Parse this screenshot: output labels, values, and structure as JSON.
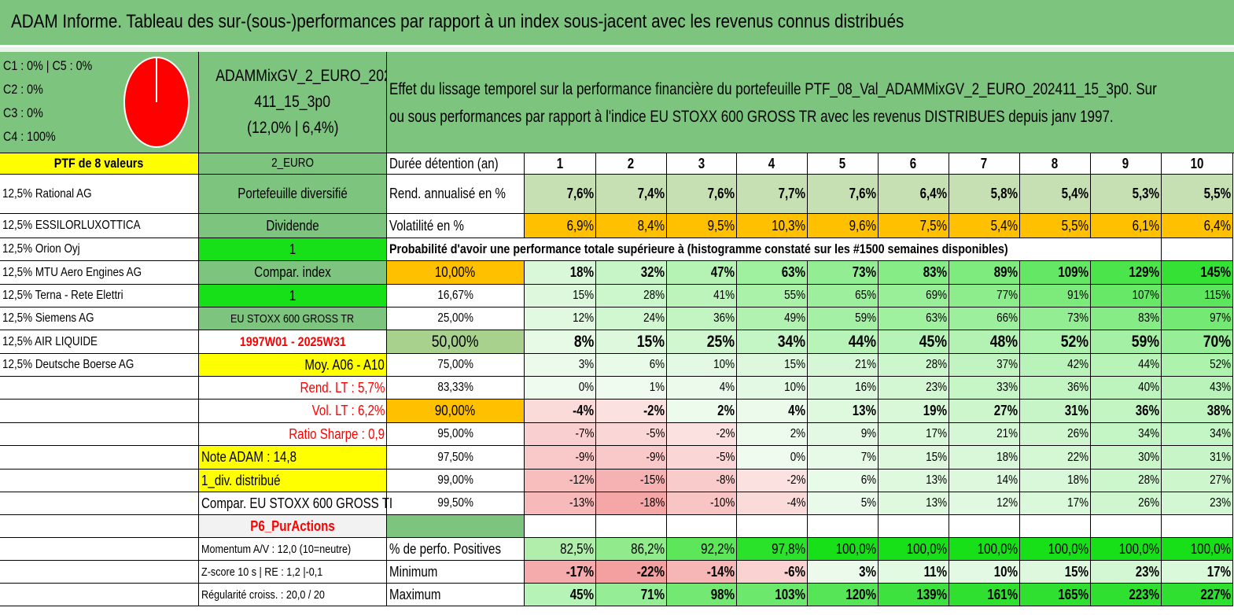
{
  "title": "ADAM Informe. Tableau des sur-(sous-)performances par rapport à un index sous-jacent avec les revenus connus distribués",
  "pie": {
    "legend": [
      "C1 : 0% | C5 : 0%",
      "C2 : 0%",
      "C3 : 0%",
      "C4 : 100%"
    ],
    "fill_color": "#ff0000",
    "slice_share": 1.0
  },
  "fund": {
    "name_line1": "ADAMMixGV_2_EURO_202",
    "name_line2": "411_15_3p0",
    "name_line3": "(12,0% | 6,4%)"
  },
  "description": {
    "line1": "Effet du lissage temporel sur la performance financière du portefeuille PTF_08_Val_ADAMMixGV_2_EURO_202411_15_3p0. Sur",
    "line2": "ou sous performances par rapport à l'indice EU STOXX 600 GROSS TR avec les revenus DISTRIBUES depuis janv 1997."
  },
  "left_col": {
    "header": "PTF de 8 valeurs",
    "holdings": [
      "12,5% Rational AG",
      "12,5% ESSILORLUXOTTICA",
      "12,5% Orion Oyj",
      "12,5% MTU Aero Engines AG",
      "12,5% Terna - Rete Elettri",
      "12,5% Siemens AG",
      "12,5% AIR LIQUIDE",
      "12,5% Deutsche Boerse AG"
    ]
  },
  "mid_col": {
    "header": "2_EURO",
    "portfolio_type": "Portefeuille diversifié",
    "dividend_label": "Dividende",
    "dividend_value": "1",
    "compar_label": "Compar. index",
    "compar_value": "1",
    "index_name": "EU STOXX 600 GROSS TR",
    "period": "1997W01 - 2025W31",
    "moy": "Moy. A06 - A10",
    "rend_lt": "Rend. LT : 5,7%",
    "vol_lt": "Vol. LT : 6,2%",
    "sharpe": "Ratio Sharpe : 0,9",
    "note": "Note ADAM : 14,8",
    "div": "1_div. distribué",
    "compar_full": "Compar. EU STOXX 600 GROSS TI",
    "p6": "P6_PurActions",
    "momentum": "Momentum A/V : 12,0 (10=neutre)",
    "zscore": "Z-score 10 s | RE : 1,2 |-0,1",
    "regularite": "Régularité croiss. : 20,0 / 20"
  },
  "table": {
    "duration_label": "Durée détention (an)",
    "years": [
      "1",
      "2",
      "3",
      "4",
      "5",
      "6",
      "7",
      "8",
      "9",
      "10"
    ],
    "rend_label": "Rend. annualisé en %",
    "rend": [
      "7,6%",
      "7,4%",
      "7,6%",
      "7,7%",
      "7,6%",
      "6,4%",
      "5,8%",
      "5,4%",
      "5,3%",
      "5,5%"
    ],
    "vol_label": "Volatilité en %",
    "vol": [
      "6,9%",
      "8,4%",
      "9,5%",
      "10,3%",
      "9,6%",
      "7,5%",
      "5,4%",
      "5,5%",
      "6,1%",
      "6,4%"
    ],
    "prob_title": "Probabilité d'avoir une performance totale supérieure à (histogramme constaté sur les #1500 semaines disponibles)",
    "prob_rows": [
      {
        "label": "10,00%",
        "values": [
          "18%",
          "32%",
          "47%",
          "63%",
          "73%",
          "83%",
          "89%",
          "109%",
          "129%",
          "145%"
        ]
      },
      {
        "label": "16,67%",
        "values": [
          "15%",
          "28%",
          "41%",
          "55%",
          "65%",
          "69%",
          "77%",
          "91%",
          "107%",
          "115%"
        ]
      },
      {
        "label": "25,00%",
        "values": [
          "12%",
          "24%",
          "36%",
          "49%",
          "59%",
          "63%",
          "66%",
          "73%",
          "83%",
          "97%"
        ]
      },
      {
        "label": "50,00%",
        "values": [
          "8%",
          "15%",
          "25%",
          "34%",
          "44%",
          "45%",
          "48%",
          "52%",
          "59%",
          "70%"
        ]
      },
      {
        "label": "75,00%",
        "values": [
          "3%",
          "6%",
          "10%",
          "15%",
          "21%",
          "28%",
          "37%",
          "42%",
          "44%",
          "52%"
        ]
      },
      {
        "label": "83,33%",
        "values": [
          "0%",
          "1%",
          "4%",
          "10%",
          "16%",
          "23%",
          "33%",
          "36%",
          "40%",
          "43%"
        ]
      },
      {
        "label": "90,00%",
        "values": [
          "-4%",
          "-2%",
          "2%",
          "4%",
          "13%",
          "19%",
          "27%",
          "31%",
          "36%",
          "38%"
        ]
      },
      {
        "label": "95,00%",
        "values": [
          "-7%",
          "-5%",
          "-2%",
          "2%",
          "9%",
          "17%",
          "21%",
          "26%",
          "34%",
          "34%"
        ]
      },
      {
        "label": "97,50%",
        "values": [
          "-9%",
          "-9%",
          "-5%",
          "0%",
          "7%",
          "15%",
          "18%",
          "22%",
          "30%",
          "31%"
        ]
      },
      {
        "label": "99,00%",
        "values": [
          "-12%",
          "-15%",
          "-8%",
          "-2%",
          "6%",
          "13%",
          "14%",
          "18%",
          "28%",
          "27%"
        ]
      },
      {
        "label": "99,50%",
        "values": [
          "-13%",
          "-18%",
          "-10%",
          "-4%",
          "5%",
          "13%",
          "12%",
          "17%",
          "26%",
          "23%"
        ]
      }
    ],
    "pos_label": "% de perfo. Positives",
    "pos": [
      "82,5%",
      "86,2%",
      "92,2%",
      "97,8%",
      "100,0%",
      "100,0%",
      "100,0%",
      "100,0%",
      "100,0%",
      "100,0%"
    ],
    "min_label": "Minimum",
    "min": [
      "-17%",
      "-22%",
      "-14%",
      "-6%",
      "3%",
      "11%",
      "10%",
      "15%",
      "23%",
      "17%"
    ],
    "max_label": "Maximum",
    "max": [
      "45%",
      "71%",
      "98%",
      "103%",
      "120%",
      "139%",
      "161%",
      "165%",
      "223%",
      "227%"
    ]
  },
  "colors": {
    "header_green": "#7dc47e",
    "bright_green": "#18e018",
    "yellow": "#ffff00",
    "orange": "#ffc000",
    "red_text": "#ff0000"
  }
}
